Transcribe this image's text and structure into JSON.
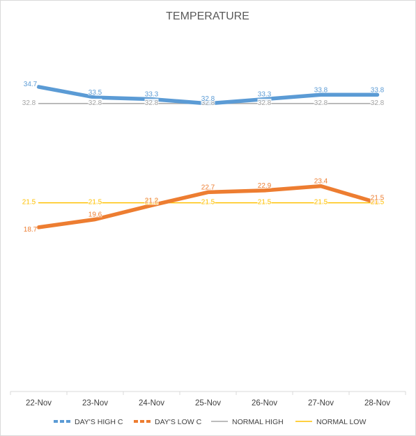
{
  "chart_data": {
    "type": "line",
    "title": "TEMPERATURE",
    "xlabel": "",
    "ylabel": "",
    "categories": [
      "22-Nov",
      "23-Nov",
      "24-Nov",
      "25-Nov",
      "26-Nov",
      "27-Nov",
      "28-Nov"
    ],
    "ylim": [
      0,
      40
    ],
    "grid": false,
    "legend_position": "bottom",
    "series": [
      {
        "name": "DAY'S HIGH C",
        "values": [
          34.7,
          33.5,
          33.3,
          32.8,
          33.3,
          33.8,
          33.8
        ],
        "color": "#5B9BD5",
        "style": "thick"
      },
      {
        "name": "DAY'S LOW C",
        "values": [
          18.7,
          19.6,
          21.2,
          22.7,
          22.9,
          23.4,
          21.5
        ],
        "color": "#ED7D31",
        "style": "thick"
      },
      {
        "name": "NORMAL HIGH",
        "values": [
          32.8,
          32.8,
          32.8,
          32.8,
          32.8,
          32.8,
          32.8
        ],
        "color": "#A5A5A5",
        "style": "thin"
      },
      {
        "name": "NORMAL LOW",
        "values": [
          21.5,
          21.5,
          21.5,
          21.5,
          21.5,
          21.5,
          21.5
        ],
        "color": "#FFC000",
        "style": "thin"
      }
    ]
  }
}
